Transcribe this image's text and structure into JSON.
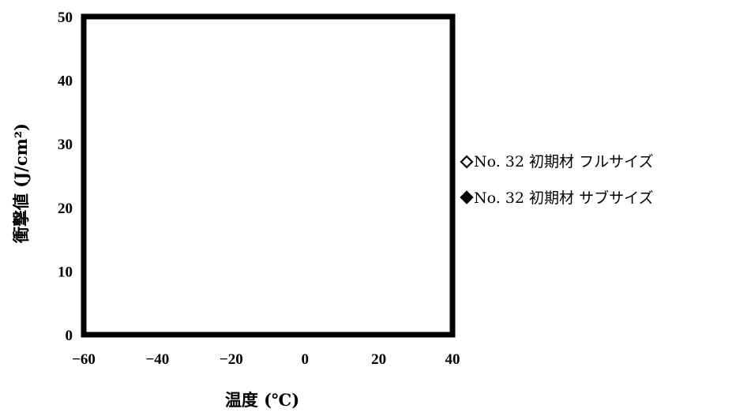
{
  "chart_data": {
    "type": "scatter",
    "title": "",
    "xlabel": "温度 (℃)",
    "ylabel": "衝撃値 (J/cm²)",
    "xlim": [
      -60,
      40
    ],
    "ylim": [
      0,
      50
    ],
    "x_ticks": [
      -60,
      -40,
      -20,
      0,
      20,
      40
    ],
    "y_ticks": [
      0,
      10,
      20,
      30,
      40,
      50
    ],
    "x_tick_labels": [
      "−60",
      "−40",
      "−20",
      "0",
      "20",
      "40"
    ],
    "y_tick_labels": [
      "0",
      "10",
      "20",
      "30",
      "40",
      "50"
    ],
    "grid": false,
    "legend_position": "right",
    "series": [
      {
        "name": "No. 32 初期材 フルサイズ",
        "marker": "open-diamond",
        "color": "#000000",
        "points": []
      },
      {
        "name": "No. 32 初期材 サブサイズ",
        "marker": "filled-diamond",
        "color": "#000000",
        "points": []
      }
    ]
  }
}
